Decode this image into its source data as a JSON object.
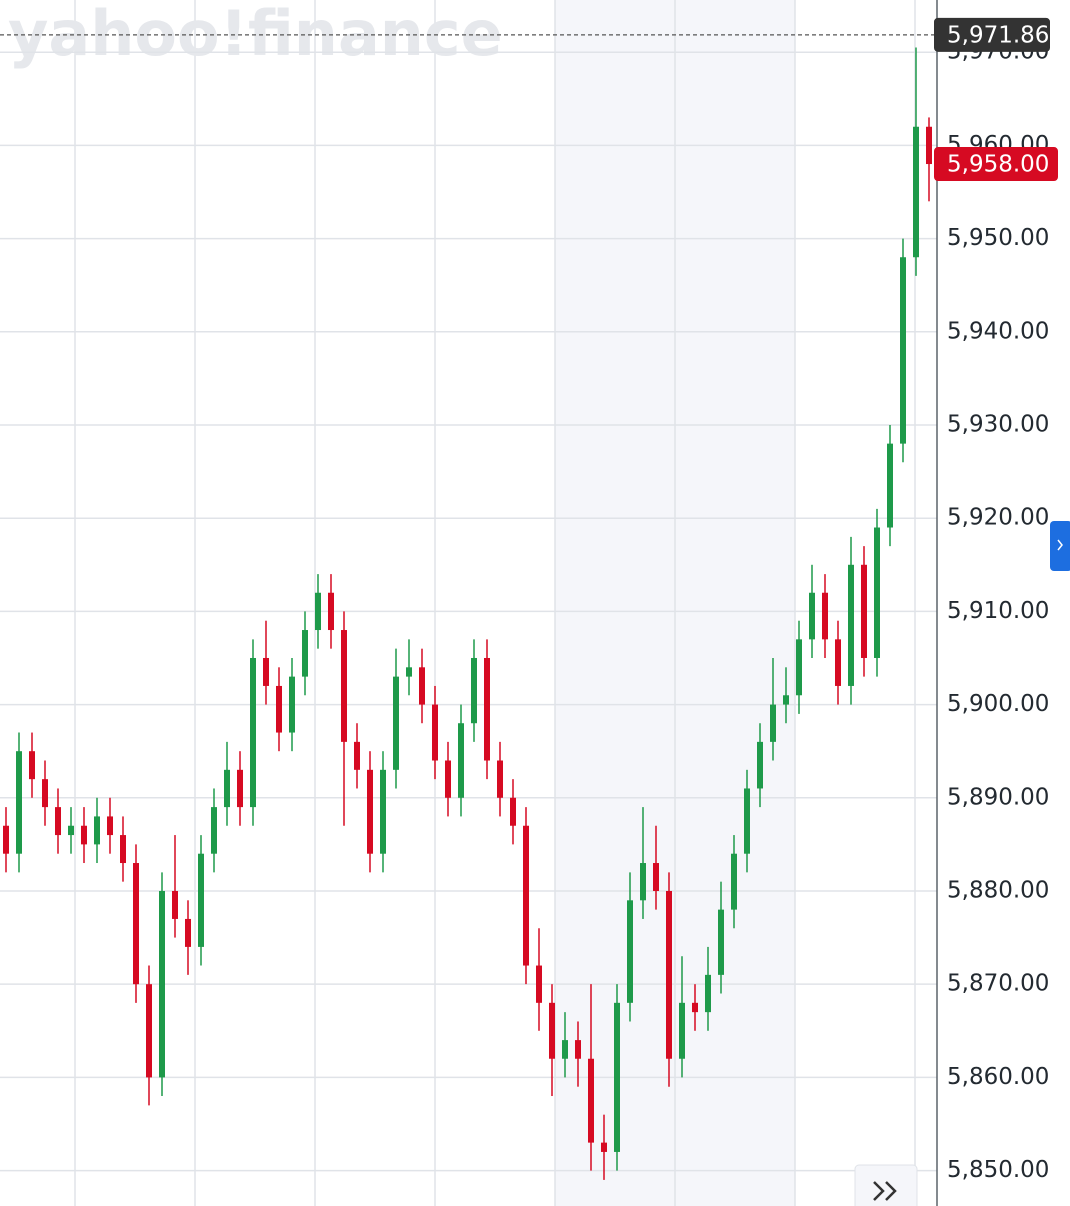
{
  "chart_data": {
    "type": "candlestick",
    "watermark": "yahoo!finance",
    "open": [
      5887,
      5884,
      5895,
      5892,
      5889,
      5886,
      5887,
      5885,
      5888,
      5886,
      5883,
      5870,
      5860,
      5880,
      5877,
      5874,
      5884,
      5889,
      5893,
      5889,
      5905,
      5902,
      5897,
      5903,
      5908,
      5912,
      5908,
      5896,
      5893,
      5884,
      5893,
      5903,
      5904,
      5900,
      5894,
      5890,
      5898,
      5905,
      5894,
      5890,
      5887,
      5872,
      5868,
      5862,
      5864,
      5862,
      5853,
      5852,
      5868,
      5879,
      5883,
      5880,
      5862,
      5868,
      5867,
      5871,
      5878,
      5884,
      5891,
      5896,
      5900,
      5901,
      5907,
      5912,
      5907,
      5902,
      5915,
      5905,
      5919,
      5928,
      5948,
      5962
    ],
    "high": [
      5889,
      5897,
      5897,
      5894,
      5891,
      5889,
      5889,
      5890,
      5890,
      5888,
      5885,
      5872,
      5882,
      5886,
      5879,
      5886,
      5891,
      5896,
      5895,
      5907,
      5909,
      5904,
      5905,
      5910,
      5914,
      5914,
      5910,
      5898,
      5895,
      5895,
      5906,
      5907,
      5906,
      5902,
      5896,
      5900,
      5907,
      5907,
      5896,
      5892,
      5889,
      5876,
      5870,
      5867,
      5866,
      5870,
      5856,
      5870,
      5882,
      5889,
      5887,
      5882,
      5873,
      5870,
      5874,
      5881,
      5886,
      5893,
      5898,
      5905,
      5904,
      5909,
      5915,
      5914,
      5909,
      5918,
      5917,
      5921,
      5930,
      5950,
      5970.5,
      5963
    ],
    "low": [
      5882,
      5882,
      5890,
      5887,
      5884,
      5884,
      5883,
      5883,
      5884,
      5881,
      5868,
      5857,
      5858,
      5875,
      5871,
      5872,
      5882,
      5887,
      5887,
      5887,
      5900,
      5895,
      5895,
      5901,
      5906,
      5906,
      5887,
      5891,
      5882,
      5882,
      5891,
      5901,
      5898,
      5892,
      5888,
      5888,
      5896,
      5892,
      5888,
      5885,
      5870,
      5865,
      5858,
      5860,
      5859,
      5850,
      5849,
      5850,
      5866,
      5877,
      5878,
      5859,
      5860,
      5865,
      5865,
      5869,
      5876,
      5882,
      5889,
      5894,
      5898,
      5899,
      5905,
      5905,
      5900,
      5900,
      5903,
      5903,
      5917,
      5926,
      5946,
      5954
    ],
    "close": [
      5884,
      5895,
      5892,
      5889,
      5886,
      5887,
      5885,
      5888,
      5886,
      5883,
      5870,
      5860,
      5880,
      5877,
      5874,
      5884,
      5889,
      5893,
      5889,
      5905,
      5902,
      5897,
      5903,
      5908,
      5912,
      5908,
      5896,
      5893,
      5884,
      5893,
      5903,
      5904,
      5900,
      5894,
      5890,
      5898,
      5905,
      5894,
      5890,
      5887,
      5872,
      5868,
      5862,
      5864,
      5862,
      5853,
      5852,
      5868,
      5879,
      5883,
      5880,
      5862,
      5868,
      5867,
      5871,
      5878,
      5884,
      5891,
      5896,
      5900,
      5901,
      5907,
      5912,
      5907,
      5902,
      5915,
      5905,
      5919,
      5928,
      5948,
      5962,
      5958
    ],
    "up_color": "#1e9a4a",
    "down_color": "#d60a22",
    "ylim": [
      5846.2,
      5975.6
    ],
    "yticks": [
      {
        "value": 5850,
        "label": "5,850.00"
      },
      {
        "value": 5860,
        "label": "5,860.00"
      },
      {
        "value": 5870,
        "label": "5,870.00"
      },
      {
        "value": 5880,
        "label": "5,880.00"
      },
      {
        "value": 5890,
        "label": "5,890.00"
      },
      {
        "value": 5900,
        "label": "5,900.00"
      },
      {
        "value": 5910,
        "label": "5,910.00"
      },
      {
        "value": 5920,
        "label": "5,920.00"
      },
      {
        "value": 5930,
        "label": "5,930.00"
      },
      {
        "value": 5940,
        "label": "5,940.00"
      },
      {
        "value": 5950,
        "label": "5,950.00"
      },
      {
        "value": 5960,
        "label": "5,960.00"
      },
      {
        "value": 5970,
        "label": "5,970.00"
      }
    ],
    "grid": true,
    "high_marker": {
      "value": 5971.86,
      "label": "5,971.86",
      "color": "#333333"
    },
    "last_price": {
      "value": 5958,
      "label": "5,958.00",
      "color": "#d60a22"
    }
  }
}
